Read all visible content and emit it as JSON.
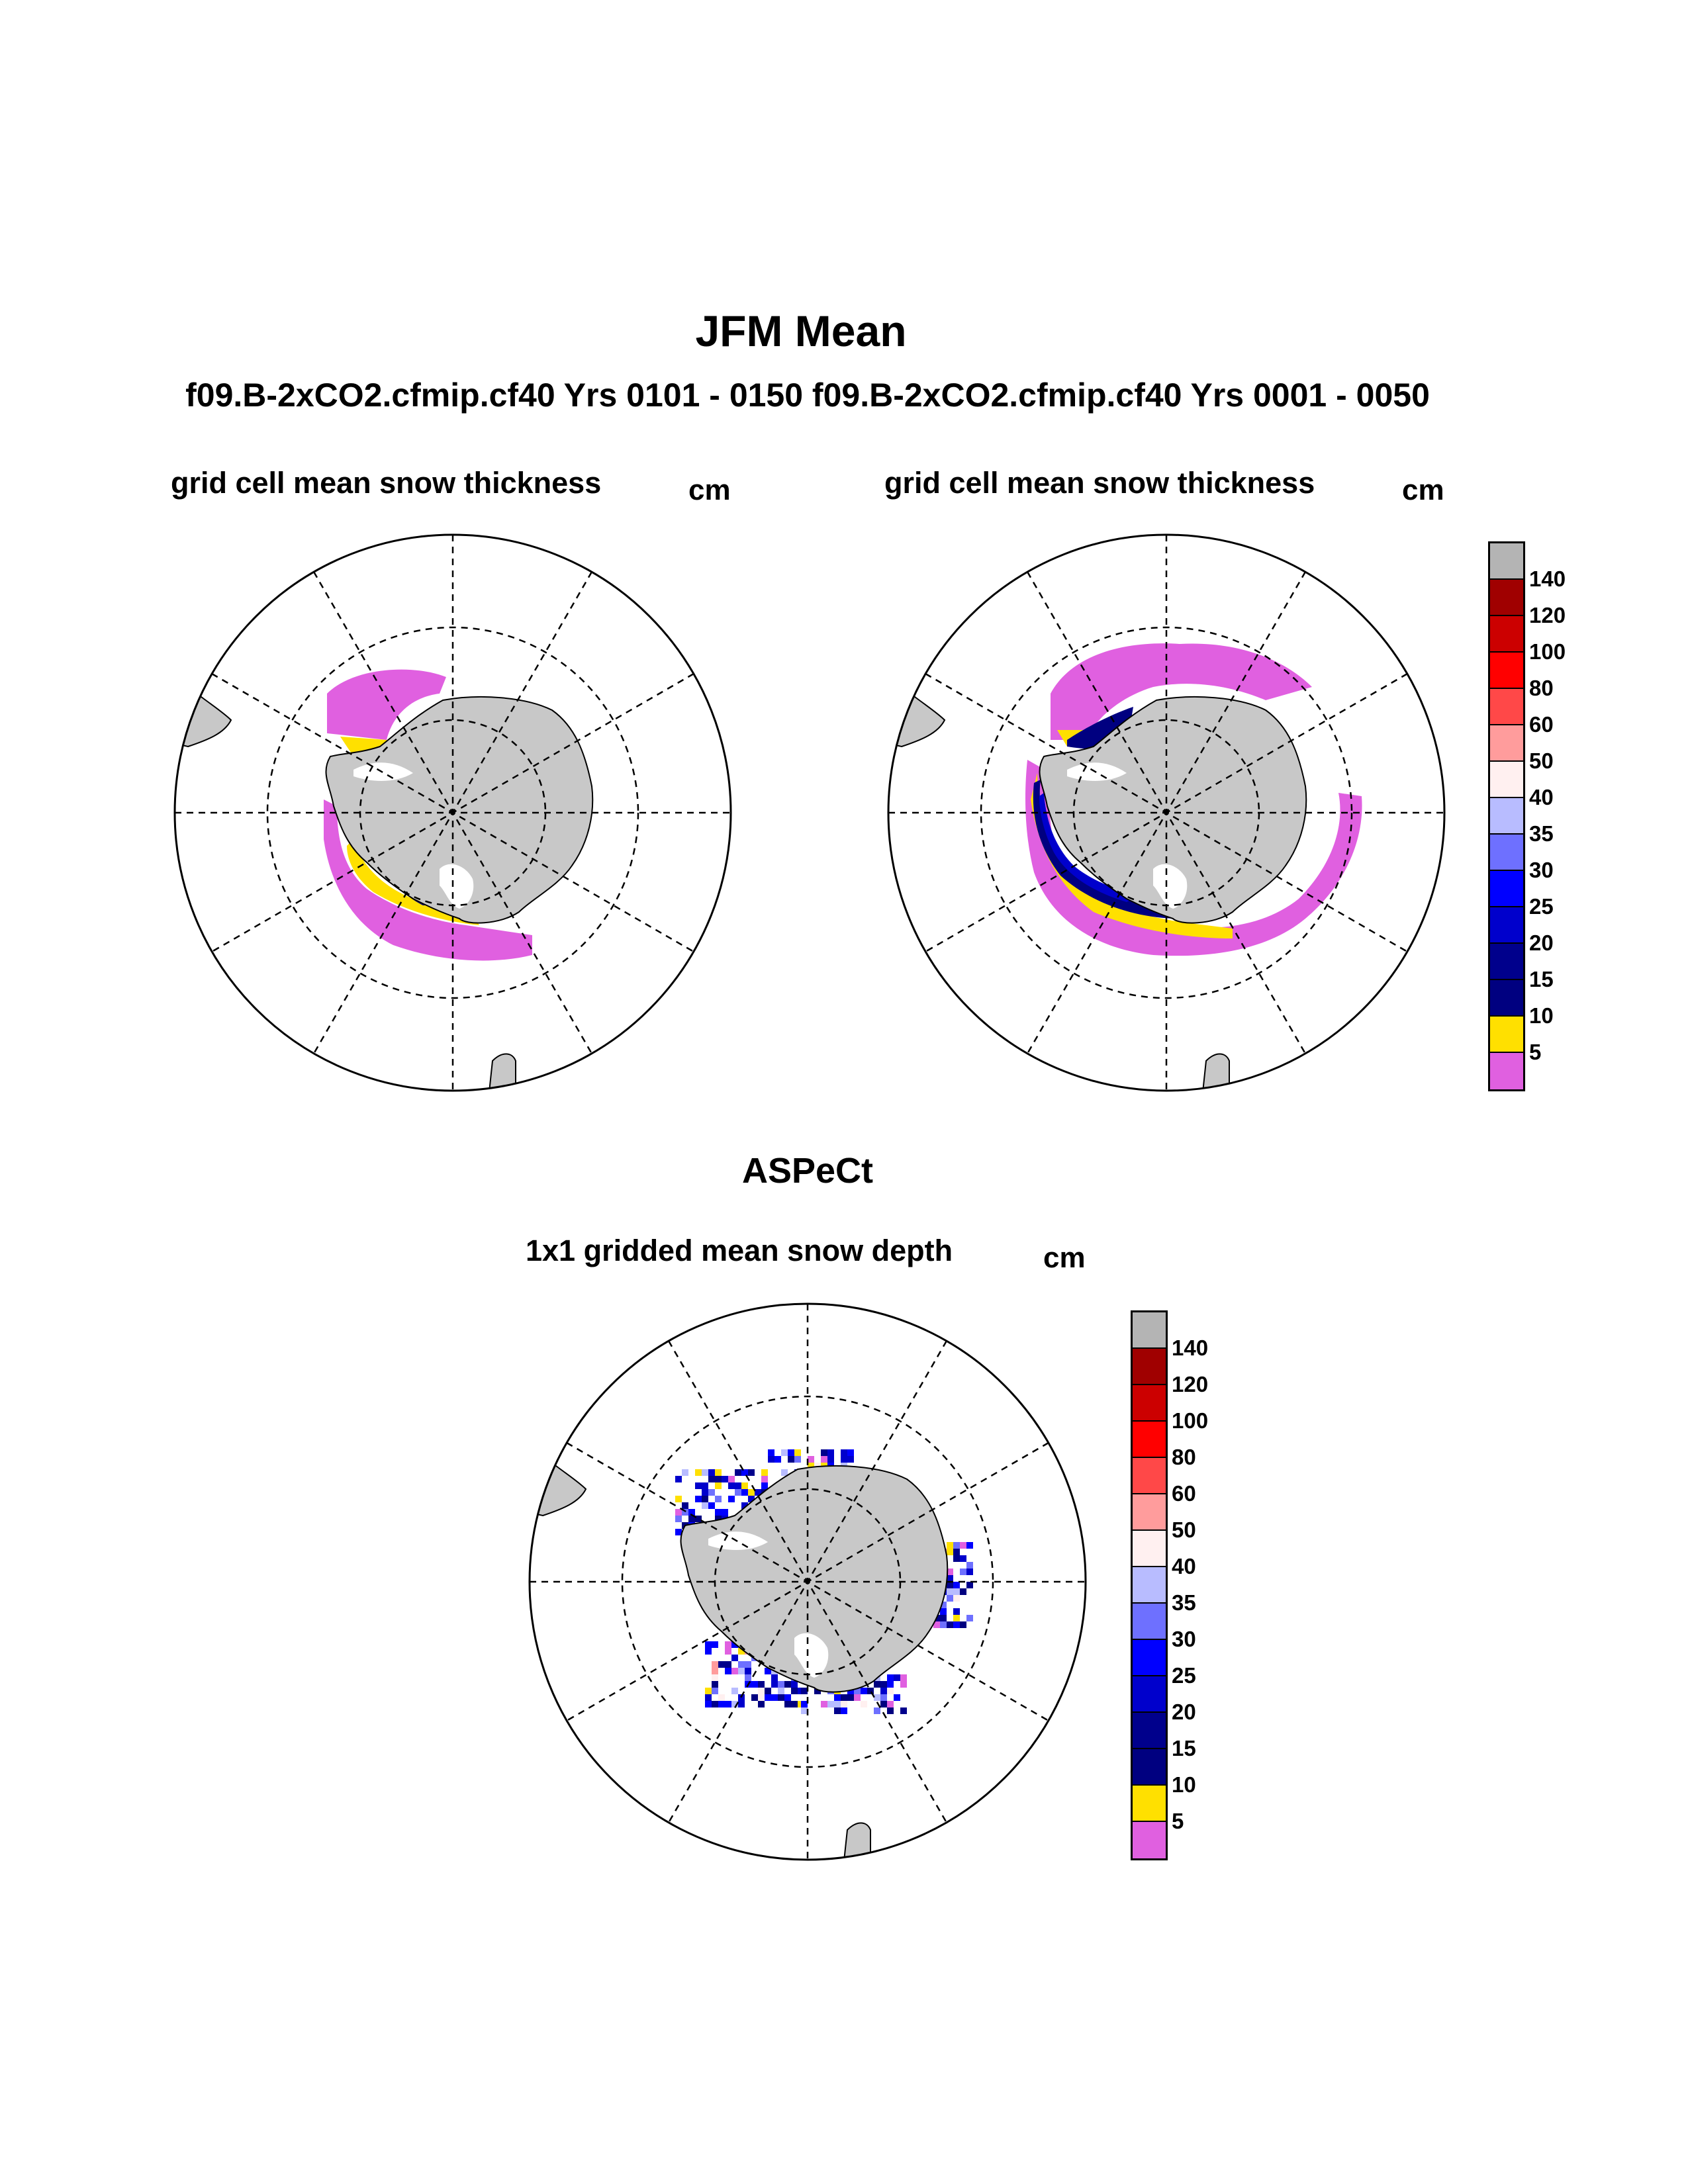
{
  "title": "JFM Mean",
  "subtitle": "f09.B-2xCO2.cfmip.cf40  Yrs 0101 - 0150 f09.B-2xCO2.cfmip.cf40  Yrs 0001 - 0050",
  "panels": [
    {
      "title": "grid cell mean snow thickness",
      "unit": "cm"
    },
    {
      "title": "grid cell mean snow thickness",
      "unit": "cm"
    }
  ],
  "observation": {
    "label": "ASPeCt",
    "panel": {
      "title": "1x1 gridded mean snow depth",
      "unit": "cm"
    }
  },
  "colorbar": {
    "levels": [
      "140",
      "120",
      "100",
      "80",
      "60",
      "50",
      "40",
      "35",
      "30",
      "25",
      "20",
      "15",
      "10",
      "5"
    ],
    "colors": [
      "#b4b4b4",
      "#a00000",
      "#cc0000",
      "#ff0000",
      "#ff4848",
      "#ff9c9c",
      "#fff0f0",
      "#b8bcff",
      "#6e70ff",
      "#0000ff",
      "#0000cc",
      "#00008c",
      "#000080",
      "#ffe000",
      "#e060e0"
    ]
  },
  "colors": {
    "land": "#c8c8c8",
    "coast": "#000000",
    "grid": "#000000"
  }
}
